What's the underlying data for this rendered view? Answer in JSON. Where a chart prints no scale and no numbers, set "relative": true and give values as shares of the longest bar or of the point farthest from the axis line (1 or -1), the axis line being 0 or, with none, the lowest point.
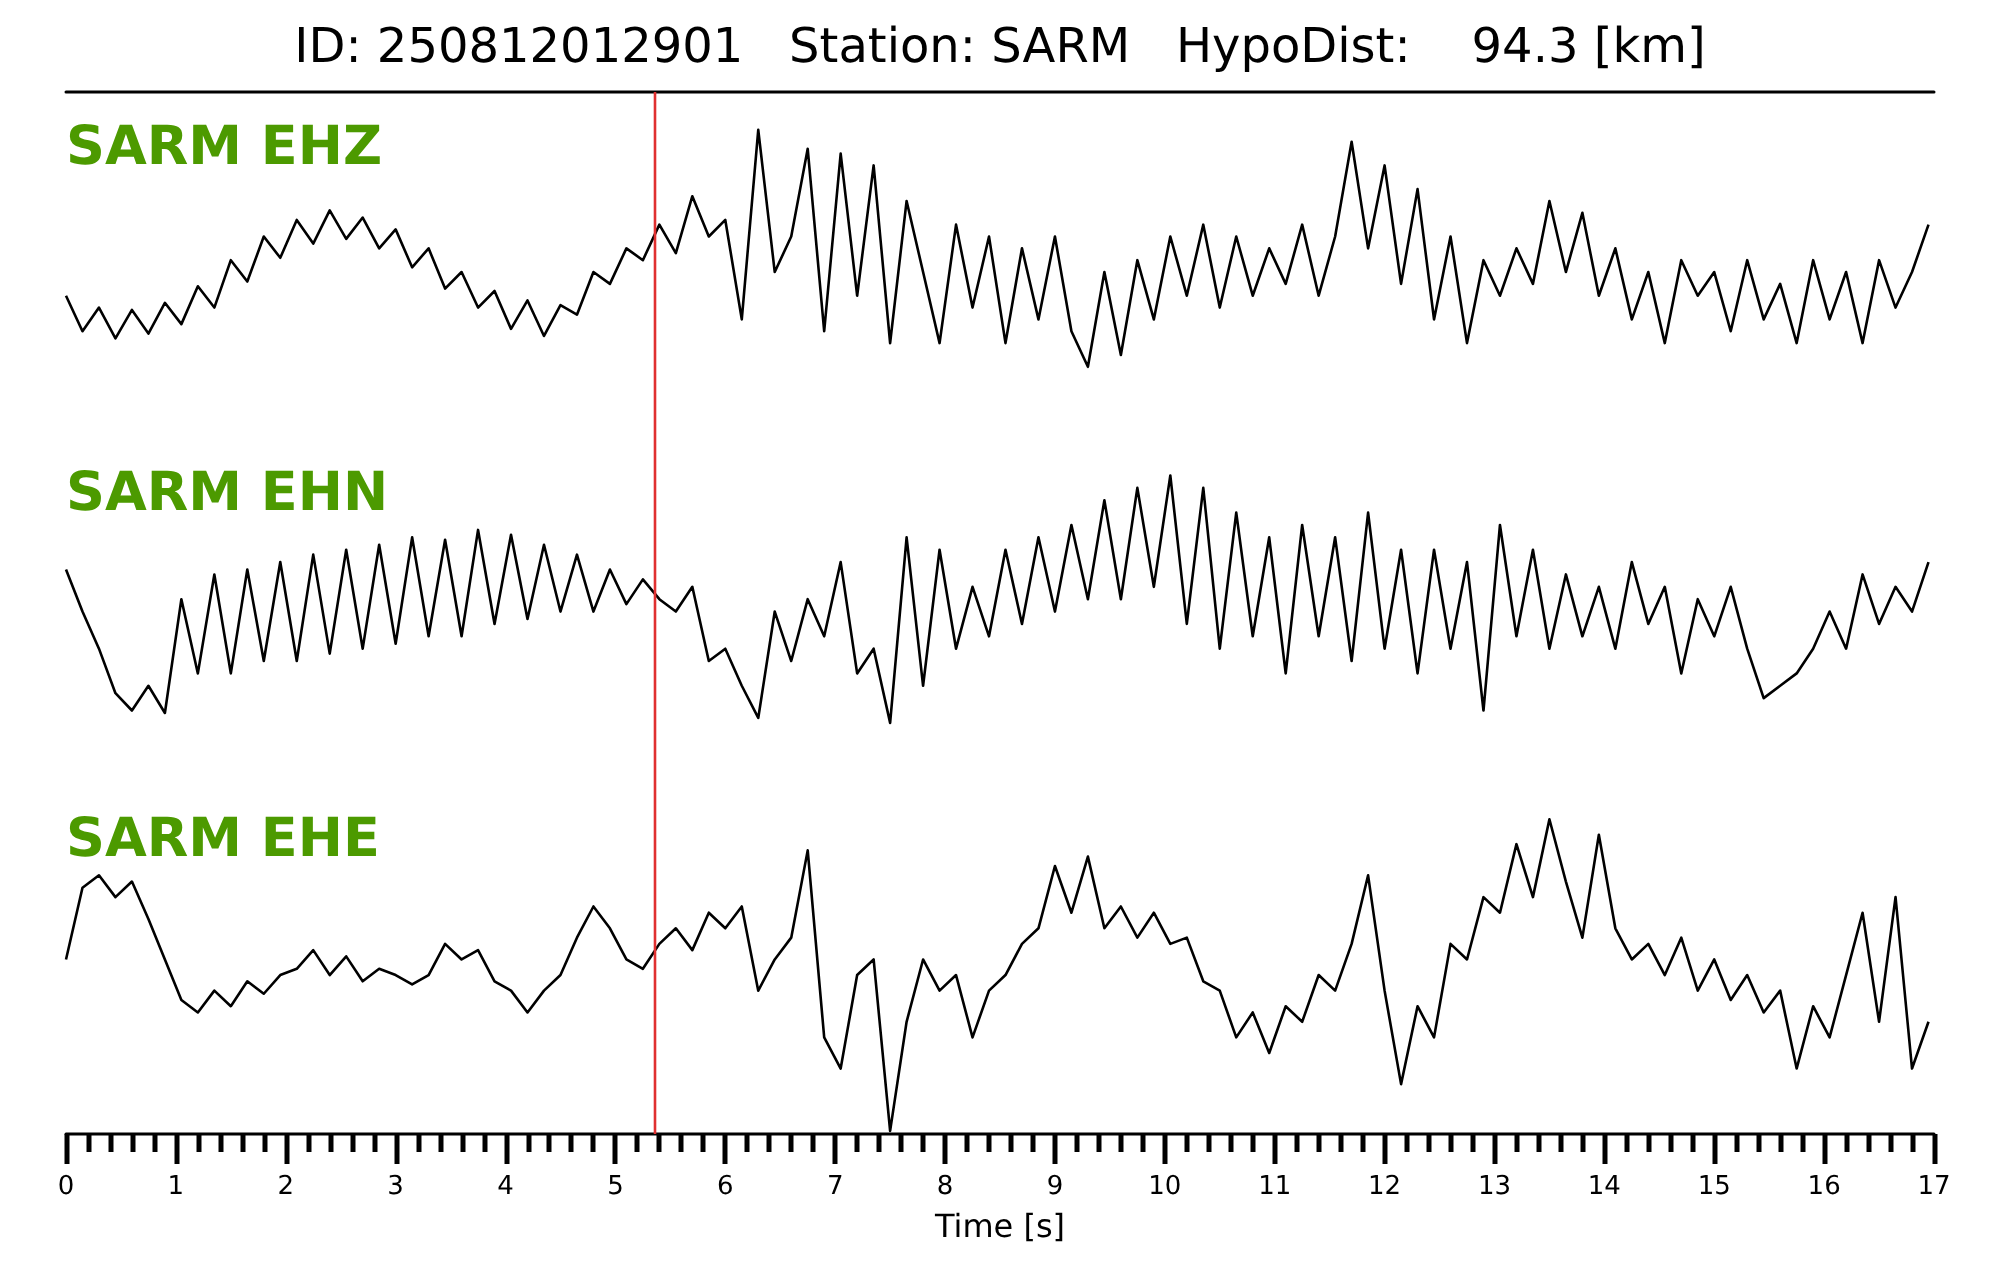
{
  "chart_data": [
    {
      "type": "line",
      "title": "ID: 250812012901   Station: SARM   HypoDist:    94.3 [km]",
      "relative": true,
      "xlim": [
        0,
        17
      ],
      "tick_labels": false,
      "x": [
        0,
        0.15,
        0.3,
        0.45,
        0.6,
        0.75,
        0.9,
        1.05,
        1.2,
        1.35,
        1.5,
        1.65,
        1.8,
        1.95,
        2.1,
        2.25,
        2.4,
        2.55,
        2.7,
        2.85,
        3,
        3.15,
        3.3,
        3.45,
        3.6,
        3.75,
        3.9,
        4.05,
        4.2,
        4.35,
        4.5,
        4.65,
        4.8,
        4.95,
        5.1,
        5.25,
        5.4,
        5.55,
        5.7,
        5.85,
        6,
        6.15,
        6.3,
        6.45,
        6.6,
        6.75,
        6.9,
        7.05,
        7.2,
        7.35,
        7.5,
        7.65,
        7.8,
        7.95,
        8.1,
        8.25,
        8.4,
        8.55,
        8.7,
        8.85,
        9,
        9.15,
        9.3,
        9.45,
        9.6,
        9.75,
        9.9,
        10.05,
        10.2,
        10.35,
        10.5,
        10.65,
        10.8,
        10.95,
        11.1,
        11.25,
        11.4,
        11.55,
        11.7,
        11.85,
        12,
        12.15,
        12.3,
        12.45,
        12.6,
        12.75,
        12.9,
        13.05,
        13.2,
        13.35,
        13.5,
        13.65,
        13.8,
        13.95,
        14.1,
        14.25,
        14.4,
        14.55,
        14.7,
        14.85,
        15,
        15.15,
        15.3,
        15.45,
        15.6,
        15.75,
        15.9,
        16.05,
        16.2,
        16.35,
        16.5,
        16.65,
        16.8,
        16.95
      ],
      "series": [
        {
          "name": "SARM EHZ",
          "color": "#000000",
          "values": [
            0.3,
            0.15,
            0.25,
            0.12,
            0.24,
            0.14,
            0.27,
            0.18,
            0.34,
            0.25,
            0.45,
            0.36,
            0.55,
            0.46,
            0.62,
            0.52,
            0.66,
            0.54,
            0.63,
            0.5,
            0.58,
            0.42,
            0.5,
            0.33,
            0.4,
            0.25,
            0.32,
            0.16,
            0.28,
            0.13,
            0.26,
            0.22,
            0.4,
            0.35,
            0.5,
            0.45,
            0.6,
            0.48,
            0.72,
            0.55,
            0.62,
            0.2,
            1,
            0.4,
            0.55,
            0.92,
            0.15,
            0.9,
            0.3,
            0.85,
            0.1,
            0.7,
            0.4,
            0.1,
            0.6,
            0.25,
            0.55,
            0.1,
            0.5,
            0.2,
            0.55,
            0.15,
            0,
            0.4,
            0.05,
            0.45,
            0.2,
            0.55,
            0.3,
            0.6,
            0.25,
            0.55,
            0.3,
            0.5,
            0.35,
            0.6,
            0.3,
            0.55,
            0.95,
            0.5,
            0.85,
            0.35,
            0.75,
            0.2,
            0.55,
            0.1,
            0.45,
            0.3,
            0.5,
            0.35,
            0.7,
            0.4,
            0.65,
            0.3,
            0.5,
            0.2,
            0.4,
            0.1,
            0.45,
            0.3,
            0.4,
            0.15,
            0.45,
            0.2,
            0.35,
            0.1,
            0.45,
            0.2,
            0.4,
            0.1,
            0.45,
            0.25,
            0.4,
            0.6
          ]
        }
      ],
      "ref_lines": [
        {
          "axis": "x",
          "value": 5.35,
          "color": "#e03030"
        }
      ]
    },
    {
      "type": "line",
      "relative": true,
      "xlim": [
        0,
        17
      ],
      "tick_labels": false,
      "x": [
        0,
        0.15,
        0.3,
        0.45,
        0.6,
        0.75,
        0.9,
        1.05,
        1.2,
        1.35,
        1.5,
        1.65,
        1.8,
        1.95,
        2.1,
        2.25,
        2.4,
        2.55,
        2.7,
        2.85,
        3,
        3.15,
        3.3,
        3.45,
        3.6,
        3.75,
        3.9,
        4.05,
        4.2,
        4.35,
        4.5,
        4.65,
        4.8,
        4.95,
        5.1,
        5.25,
        5.4,
        5.55,
        5.7,
        5.85,
        6,
        6.15,
        6.3,
        6.45,
        6.6,
        6.75,
        6.9,
        7.05,
        7.2,
        7.35,
        7.5,
        7.65,
        7.8,
        7.95,
        8.1,
        8.25,
        8.4,
        8.55,
        8.7,
        8.85,
        9,
        9.15,
        9.3,
        9.45,
        9.6,
        9.75,
        9.9,
        10.05,
        10.2,
        10.35,
        10.5,
        10.65,
        10.8,
        10.95,
        11.1,
        11.25,
        11.4,
        11.55,
        11.7,
        11.85,
        12,
        12.15,
        12.3,
        12.45,
        12.6,
        12.75,
        12.9,
        13.05,
        13.2,
        13.35,
        13.5,
        13.65,
        13.8,
        13.95,
        14.1,
        14.25,
        14.4,
        14.55,
        14.7,
        14.85,
        15,
        15.15,
        15.3,
        15.45,
        15.6,
        15.75,
        15.9,
        16.05,
        16.2,
        16.35,
        16.5,
        16.65,
        16.8,
        16.95
      ],
      "series": [
        {
          "name": "SARM EHN",
          "color": "#000000",
          "values": [
            0.62,
            0.45,
            0.3,
            0.12,
            0.05,
            0.15,
            0.04,
            0.5,
            0.2,
            0.6,
            0.2,
            0.62,
            0.25,
            0.65,
            0.25,
            0.68,
            0.28,
            0.7,
            0.3,
            0.72,
            0.32,
            0.75,
            0.35,
            0.74,
            0.35,
            0.78,
            0.4,
            0.76,
            0.42,
            0.72,
            0.45,
            0.68,
            0.45,
            0.62,
            0.48,
            0.58,
            0.5,
            0.45,
            0.55,
            0.25,
            0.3,
            0.15,
            0.02,
            0.45,
            0.25,
            0.5,
            0.35,
            0.65,
            0.2,
            0.3,
            0,
            0.75,
            0.15,
            0.7,
            0.3,
            0.55,
            0.35,
            0.7,
            0.4,
            0.75,
            0.45,
            0.8,
            0.5,
            0.9,
            0.5,
            0.95,
            0.55,
            1,
            0.4,
            0.95,
            0.3,
            0.85,
            0.35,
            0.75,
            0.2,
            0.8,
            0.35,
            0.75,
            0.25,
            0.85,
            0.3,
            0.7,
            0.2,
            0.7,
            0.3,
            0.65,
            0.05,
            0.8,
            0.35,
            0.7,
            0.3,
            0.6,
            0.35,
            0.55,
            0.3,
            0.65,
            0.4,
            0.55,
            0.2,
            0.5,
            0.35,
            0.55,
            0.3,
            0.1,
            0.15,
            0.2,
            0.3,
            0.45,
            0.3,
            0.6,
            0.4,
            0.55,
            0.45,
            0.65
          ]
        }
      ],
      "ref_lines": [
        {
          "axis": "x",
          "value": 5.35,
          "color": "#e03030"
        }
      ]
    },
    {
      "type": "line",
      "relative": true,
      "xlim": [
        0,
        17
      ],
      "xlabel": "Time [s]",
      "xticks": [
        0,
        {
          "value": 0.2,
          "label": null
        },
        {
          "value": 0.4,
          "label": null
        },
        {
          "value": 0.6,
          "label": null
        },
        {
          "value": 0.8,
          "label": null
        },
        1,
        {
          "value": 1.2,
          "label": null
        },
        {
          "value": 1.4,
          "label": null
        },
        {
          "value": 1.6,
          "label": null
        },
        {
          "value": 1.8,
          "label": null
        },
        2,
        {
          "value": 2.2,
          "label": null
        },
        {
          "value": 2.4,
          "label": null
        },
        {
          "value": 2.6,
          "label": null
        },
        {
          "value": 2.8,
          "label": null
        },
        3,
        {
          "value": 3.2,
          "label": null
        },
        {
          "value": 3.4,
          "label": null
        },
        {
          "value": 3.6,
          "label": null
        },
        {
          "value": 3.8,
          "label": null
        },
        4,
        {
          "value": 4.2,
          "label": null
        },
        {
          "value": 4.4,
          "label": null
        },
        {
          "value": 4.6,
          "label": null
        },
        {
          "value": 4.8,
          "label": null
        },
        5,
        {
          "value": 5.2,
          "label": null
        },
        {
          "value": 5.4,
          "label": null
        },
        {
          "value": 5.6,
          "label": null
        },
        {
          "value": 5.8,
          "label": null
        },
        6,
        {
          "value": 6.2,
          "label": null
        },
        {
          "value": 6.4,
          "label": null
        },
        {
          "value": 6.6,
          "label": null
        },
        {
          "value": 6.8,
          "label": null
        },
        7,
        {
          "value": 7.2,
          "label": null
        },
        {
          "value": 7.4,
          "label": null
        },
        {
          "value": 7.6,
          "label": null
        },
        {
          "value": 7.8,
          "label": null
        },
        8,
        {
          "value": 8.2,
          "label": null
        },
        {
          "value": 8.4,
          "label": null
        },
        {
          "value": 8.6,
          "label": null
        },
        {
          "value": 8.8,
          "label": null
        },
        9,
        {
          "value": 9.2,
          "label": null
        },
        {
          "value": 9.4,
          "label": null
        },
        {
          "value": 9.6,
          "label": null
        },
        {
          "value": 9.8,
          "label": null
        },
        10,
        {
          "value": 10.2,
          "label": null
        },
        {
          "value": 10.4,
          "label": null
        },
        {
          "value": 10.6,
          "label": null
        },
        {
          "value": 10.8,
          "label": null
        },
        11,
        {
          "value": 11.2,
          "label": null
        },
        {
          "value": 11.4,
          "label": null
        },
        {
          "value": 11.6,
          "label": null
        },
        {
          "value": 11.8,
          "label": null
        },
        12,
        {
          "value": 12.2,
          "label": null
        },
        {
          "value": 12.4,
          "label": null
        },
        {
          "value": 12.6,
          "label": null
        },
        {
          "value": 12.8,
          "label": null
        },
        13,
        {
          "value": 13.2,
          "label": null
        },
        {
          "value": 13.4,
          "label": null
        },
        {
          "value": 13.6,
          "label": null
        },
        {
          "value": 13.8,
          "label": null
        },
        14,
        {
          "value": 14.2,
          "label": null
        },
        {
          "value": 14.4,
          "label": null
        },
        {
          "value": 14.6,
          "label": null
        },
        {
          "value": 14.8,
          "label": null
        },
        15,
        {
          "value": 15.2,
          "label": null
        },
        {
          "value": 15.4,
          "label": null
        },
        {
          "value": 15.6,
          "label": null
        },
        {
          "value": 15.8,
          "label": null
        },
        16,
        {
          "value": 16.2,
          "label": null
        },
        {
          "value": 16.4,
          "label": null
        },
        {
          "value": 16.6,
          "label": null
        },
        {
          "value": 16.8,
          "label": null
        },
        17
      ],
      "x": [
        0,
        0.15,
        0.3,
        0.45,
        0.6,
        0.75,
        0.9,
        1.05,
        1.2,
        1.35,
        1.5,
        1.65,
        1.8,
        1.95,
        2.1,
        2.25,
        2.4,
        2.55,
        2.7,
        2.85,
        3,
        3.15,
        3.3,
        3.45,
        3.6,
        3.75,
        3.9,
        4.05,
        4.2,
        4.35,
        4.5,
        4.65,
        4.8,
        4.95,
        5.1,
        5.25,
        5.4,
        5.55,
        5.7,
        5.85,
        6,
        6.15,
        6.3,
        6.45,
        6.6,
        6.75,
        6.9,
        7.05,
        7.2,
        7.35,
        7.5,
        7.65,
        7.8,
        7.95,
        8.1,
        8.25,
        8.4,
        8.55,
        8.7,
        8.85,
        9,
        9.15,
        9.3,
        9.45,
        9.6,
        9.75,
        9.9,
        10.05,
        10.2,
        10.35,
        10.5,
        10.65,
        10.8,
        10.95,
        11.1,
        11.25,
        11.4,
        11.55,
        11.7,
        11.85,
        12,
        12.15,
        12.3,
        12.45,
        12.6,
        12.75,
        12.9,
        13.05,
        13.2,
        13.35,
        13.5,
        13.65,
        13.8,
        13.95,
        14.1,
        14.25,
        14.4,
        14.55,
        14.7,
        14.85,
        15,
        15.15,
        15.3,
        15.45,
        15.6,
        15.75,
        15.9,
        16.05,
        16.2,
        16.35,
        16.5,
        16.65,
        16.8,
        16.95
      ],
      "series": [
        {
          "name": "SARM EHE",
          "color": "#000000",
          "values": [
            0.55,
            0.78,
            0.82,
            0.75,
            0.8,
            0.68,
            0.55,
            0.42,
            0.38,
            0.45,
            0.4,
            0.48,
            0.44,
            0.5,
            0.52,
            0.58,
            0.5,
            0.56,
            0.48,
            0.52,
            0.5,
            0.47,
            0.5,
            0.6,
            0.55,
            0.58,
            0.48,
            0.45,
            0.38,
            0.45,
            0.5,
            0.62,
            0.72,
            0.65,
            0.55,
            0.52,
            0.6,
            0.65,
            0.58,
            0.7,
            0.65,
            0.72,
            0.45,
            0.55,
            0.62,
            0.9,
            0.3,
            0.2,
            0.5,
            0.55,
            0,
            0.35,
            0.55,
            0.45,
            0.5,
            0.3,
            0.45,
            0.5,
            0.6,
            0.65,
            0.85,
            0.7,
            0.88,
            0.65,
            0.72,
            0.62,
            0.7,
            0.6,
            0.62,
            0.48,
            0.45,
            0.3,
            0.38,
            0.25,
            0.4,
            0.35,
            0.5,
            0.45,
            0.6,
            0.82,
            0.45,
            0.15,
            0.4,
            0.3,
            0.6,
            0.55,
            0.75,
            0.7,
            0.92,
            0.75,
            1,
            0.8,
            0.62,
            0.95,
            0.65,
            0.55,
            0.6,
            0.5,
            0.62,
            0.45,
            0.55,
            0.42,
            0.5,
            0.38,
            0.45,
            0.2,
            0.4,
            0.3,
            0.5,
            0.7,
            0.35,
            0.75,
            0.2,
            0.35
          ]
        }
      ],
      "ref_lines": [
        {
          "axis": "x",
          "value": 5.35,
          "color": "#e03030"
        }
      ]
    }
  ]
}
